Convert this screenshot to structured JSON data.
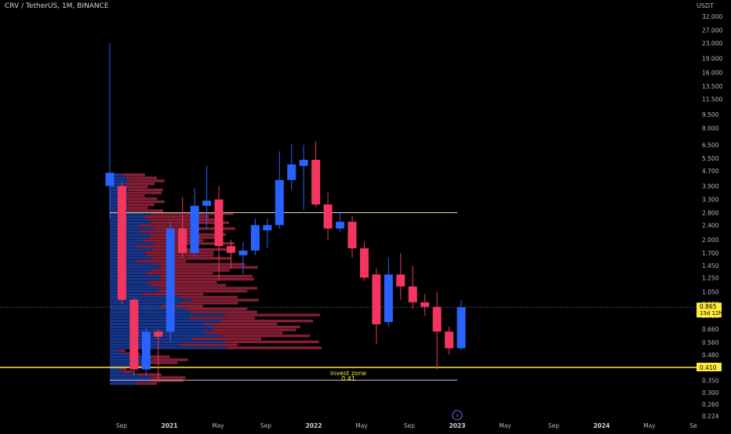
{
  "header": {
    "symbol_line": "CRV / TetherUS, 1M, BINANCE",
    "currency": "USDT"
  },
  "price_axis": {
    "ticks": [
      "32.000",
      "27.000",
      "23.000",
      "19.000",
      "16.000",
      "13.500",
      "11.500",
      "9.500",
      "8.000",
      "6.500",
      "5.500",
      "4.700",
      "3.900",
      "3.300",
      "2.800",
      "2.400",
      "2.000",
      "1.700",
      "1.450",
      "1.250",
      "1.050",
      "0.900",
      "0.780",
      "0.660",
      "0.560",
      "0.480",
      "0.410",
      "0.350",
      "0.300",
      "0.260",
      "0.224"
    ],
    "current_price": "0.865",
    "countdown": "15d 12h",
    "zone_price": "0.410"
  },
  "time_axis": {
    "labels": [
      "Sep",
      "2021",
      "May",
      "Sep",
      "2022",
      "May",
      "Sep",
      "2023",
      "May",
      "Sep",
      "2024",
      "May",
      "Se"
    ]
  },
  "annotations": {
    "zone_label": "invest zone",
    "zone_value": "0.41"
  },
  "colors": {
    "up": "#2962ff",
    "down": "#f23660",
    "zone_line": "#ffeb3b",
    "resistance_line": "#e0d6a0",
    "background": "#000000"
  },
  "chart_data": {
    "type": "candlestick",
    "scale": "log",
    "ylim": [
      0.21,
      36
    ],
    "overlays": [
      "volume profile (blue = up volume, red = down volume)"
    ],
    "horizontal_lines": [
      2.8,
      0.41,
      0.865
    ],
    "candles": [
      {
        "date": "2020-08",
        "open": 3.9,
        "high": 23,
        "low": 2.6,
        "close": 4.6
      },
      {
        "date": "2020-09",
        "open": 3.9,
        "high": 4.1,
        "low": 0.9,
        "close": 0.95
      },
      {
        "date": "2020-10",
        "open": 0.95,
        "high": 0.97,
        "low": 0.37,
        "close": 0.4
      },
      {
        "date": "2020-11",
        "open": 0.4,
        "high": 0.67,
        "low": 0.37,
        "close": 0.64
      },
      {
        "date": "2020-12",
        "open": 0.64,
        "high": 0.66,
        "low": 0.34,
        "close": 0.6
      },
      {
        "date": "2021-01",
        "open": 0.64,
        "high": 2.5,
        "low": 0.56,
        "close": 2.3
      },
      {
        "date": "2021-02",
        "open": 2.3,
        "high": 3.4,
        "low": 1.6,
        "close": 1.7
      },
      {
        "date": "2021-03",
        "open": 1.7,
        "high": 3.8,
        "low": 1.6,
        "close": 3.05
      },
      {
        "date": "2021-04",
        "open": 3.05,
        "high": 5.0,
        "low": 2.3,
        "close": 3.25
      },
      {
        "date": "2021-05",
        "open": 3.3,
        "high": 3.9,
        "low": 1.2,
        "close": 1.85
      },
      {
        "date": "2021-06",
        "open": 1.85,
        "high": 2.0,
        "low": 1.4,
        "close": 1.7
      },
      {
        "date": "2021-07",
        "open": 1.65,
        "high": 1.95,
        "low": 1.3,
        "close": 1.75
      },
      {
        "date": "2021-08",
        "open": 1.75,
        "high": 2.6,
        "low": 1.65,
        "close": 2.4
      },
      {
        "date": "2021-09",
        "open": 2.25,
        "high": 2.6,
        "low": 1.8,
        "close": 2.4
      },
      {
        "date": "2021-10",
        "open": 2.4,
        "high": 6.0,
        "low": 2.3,
        "close": 4.2
      },
      {
        "date": "2021-11",
        "open": 4.2,
        "high": 6.6,
        "low": 3.7,
        "close": 5.1
      },
      {
        "date": "2021-12",
        "open": 5.0,
        "high": 6.5,
        "low": 2.9,
        "close": 5.4
      },
      {
        "date": "2022-01",
        "open": 5.4,
        "high": 6.8,
        "low": 3.0,
        "close": 3.1
      },
      {
        "date": "2022-02",
        "open": 3.1,
        "high": 3.6,
        "low": 2.0,
        "close": 2.3
      },
      {
        "date": "2022-03",
        "open": 2.3,
        "high": 2.8,
        "low": 2.2,
        "close": 2.5
      },
      {
        "date": "2022-04",
        "open": 2.5,
        "high": 2.7,
        "low": 1.6,
        "close": 1.8
      },
      {
        "date": "2022-05",
        "open": 1.8,
        "high": 1.95,
        "low": 1.2,
        "close": 1.25
      },
      {
        "date": "2022-06",
        "open": 1.3,
        "high": 1.4,
        "low": 0.55,
        "close": 0.7
      },
      {
        "date": "2022-07",
        "open": 0.72,
        "high": 1.6,
        "low": 0.68,
        "close": 1.3
      },
      {
        "date": "2022-08",
        "open": 1.3,
        "high": 1.7,
        "low": 0.95,
        "close": 1.12
      },
      {
        "date": "2022-09",
        "open": 1.12,
        "high": 1.45,
        "low": 0.85,
        "close": 0.92
      },
      {
        "date": "2022-10",
        "open": 0.92,
        "high": 1.02,
        "low": 0.78,
        "close": 0.87
      },
      {
        "date": "2022-11",
        "open": 0.87,
        "high": 1.05,
        "low": 0.4,
        "close": 0.64
      },
      {
        "date": "2022-12",
        "open": 0.64,
        "high": 0.68,
        "low": 0.48,
        "close": 0.52
      },
      {
        "date": "2023-01",
        "open": 0.52,
        "high": 0.95,
        "low": 0.51,
        "close": 0.865
      }
    ]
  }
}
